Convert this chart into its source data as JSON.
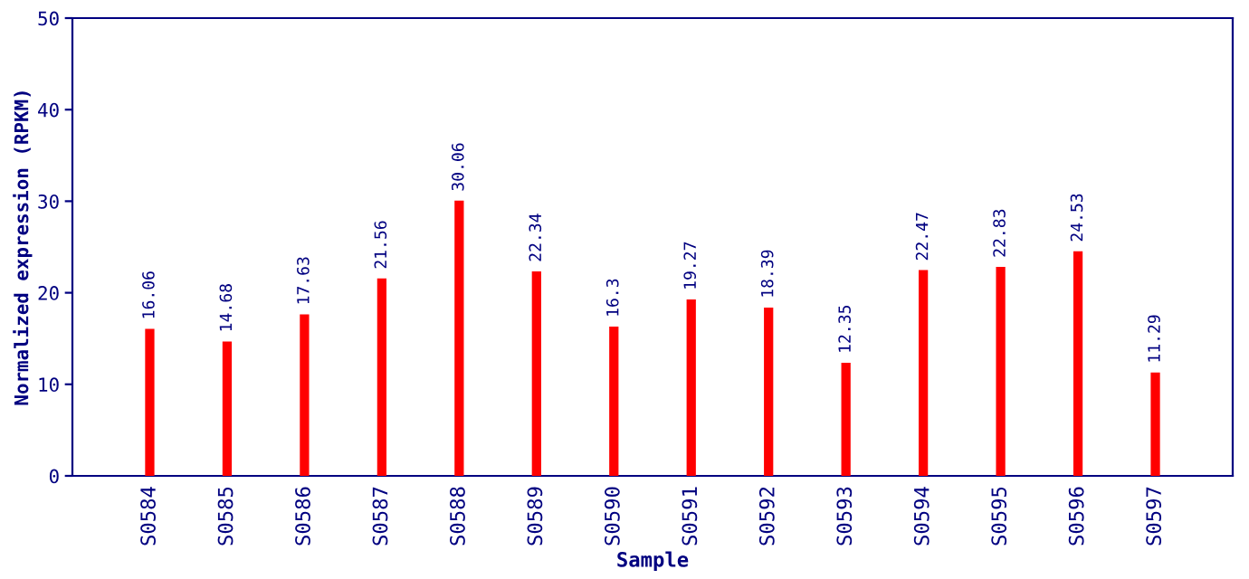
{
  "chart_data": {
    "type": "bar",
    "xlabel": "Sample",
    "ylabel": "Normalized expression (RPKM)",
    "categories": [
      "S0584",
      "S0585",
      "S0586",
      "S0587",
      "S0588",
      "S0589",
      "S0590",
      "S0591",
      "S0592",
      "S0593",
      "S0594",
      "S0595",
      "S0596",
      "S0597"
    ],
    "values": [
      16.06,
      14.68,
      17.63,
      21.56,
      30.06,
      22.34,
      16.3,
      19.27,
      18.39,
      12.35,
      22.47,
      22.83,
      24.53,
      11.29
    ],
    "color": "#ff0000",
    "ylim": [
      0,
      50
    ],
    "yticks": [
      0,
      10,
      20,
      30,
      40,
      50
    ],
    "data_labels": true,
    "grid": false,
    "legend": false
  }
}
